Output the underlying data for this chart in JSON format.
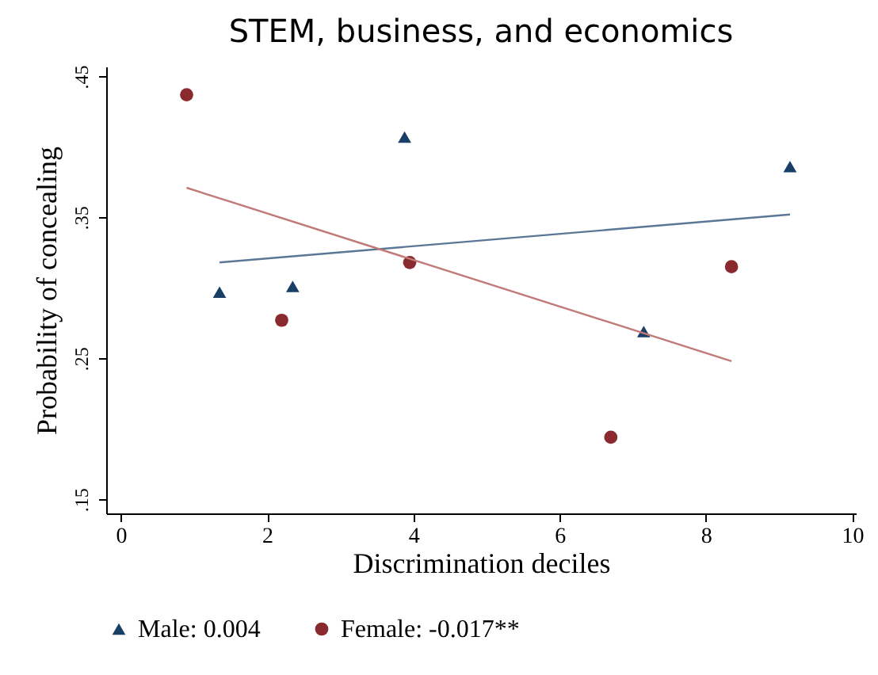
{
  "chart_data": {
    "type": "scatter",
    "title": "STEM, business, and economics",
    "xlabel": "Discrimination deciles",
    "ylabel": "Probability of concealing",
    "xlim": [
      -0.2,
      10.05
    ],
    "ylim": [
      0.14,
      0.457
    ],
    "xticks": [
      0,
      2,
      4,
      6,
      8,
      10
    ],
    "yticks": [
      {
        "value": 0.15,
        "label": ".15"
      },
      {
        "value": 0.25,
        "label": ".25"
      },
      {
        "value": 0.35,
        "label": ".35"
      },
      {
        "value": 0.45,
        "label": ".45"
      }
    ],
    "grid": false,
    "legend": "bottom",
    "series": [
      {
        "name": "Male: 0.004",
        "marker": "triangle",
        "color": "#1a3f66",
        "x": [
          1.35,
          2.35,
          3.88,
          7.15,
          9.15
        ],
        "values": [
          0.297,
          0.301,
          0.407,
          0.269,
          0.386
        ]
      },
      {
        "name": "Female: -0.017**",
        "marker": "circle",
        "color": "#8b2a2e",
        "x": [
          0.9,
          2.2,
          3.95,
          6.7,
          8.35
        ],
        "values": [
          0.437,
          0.277,
          0.318,
          0.194,
          0.315
        ]
      },
      {
        "type": "line",
        "line_style": "solid",
        "color": "#5a7896",
        "x": [
          1.35,
          9.15
        ],
        "values": [
          0.318,
          0.352
        ]
      },
      {
        "type": "line",
        "line_style": "solid",
        "color": "#c07a78",
        "x": [
          0.9,
          8.35
        ],
        "values": [
          0.371,
          0.248
        ]
      }
    ]
  }
}
